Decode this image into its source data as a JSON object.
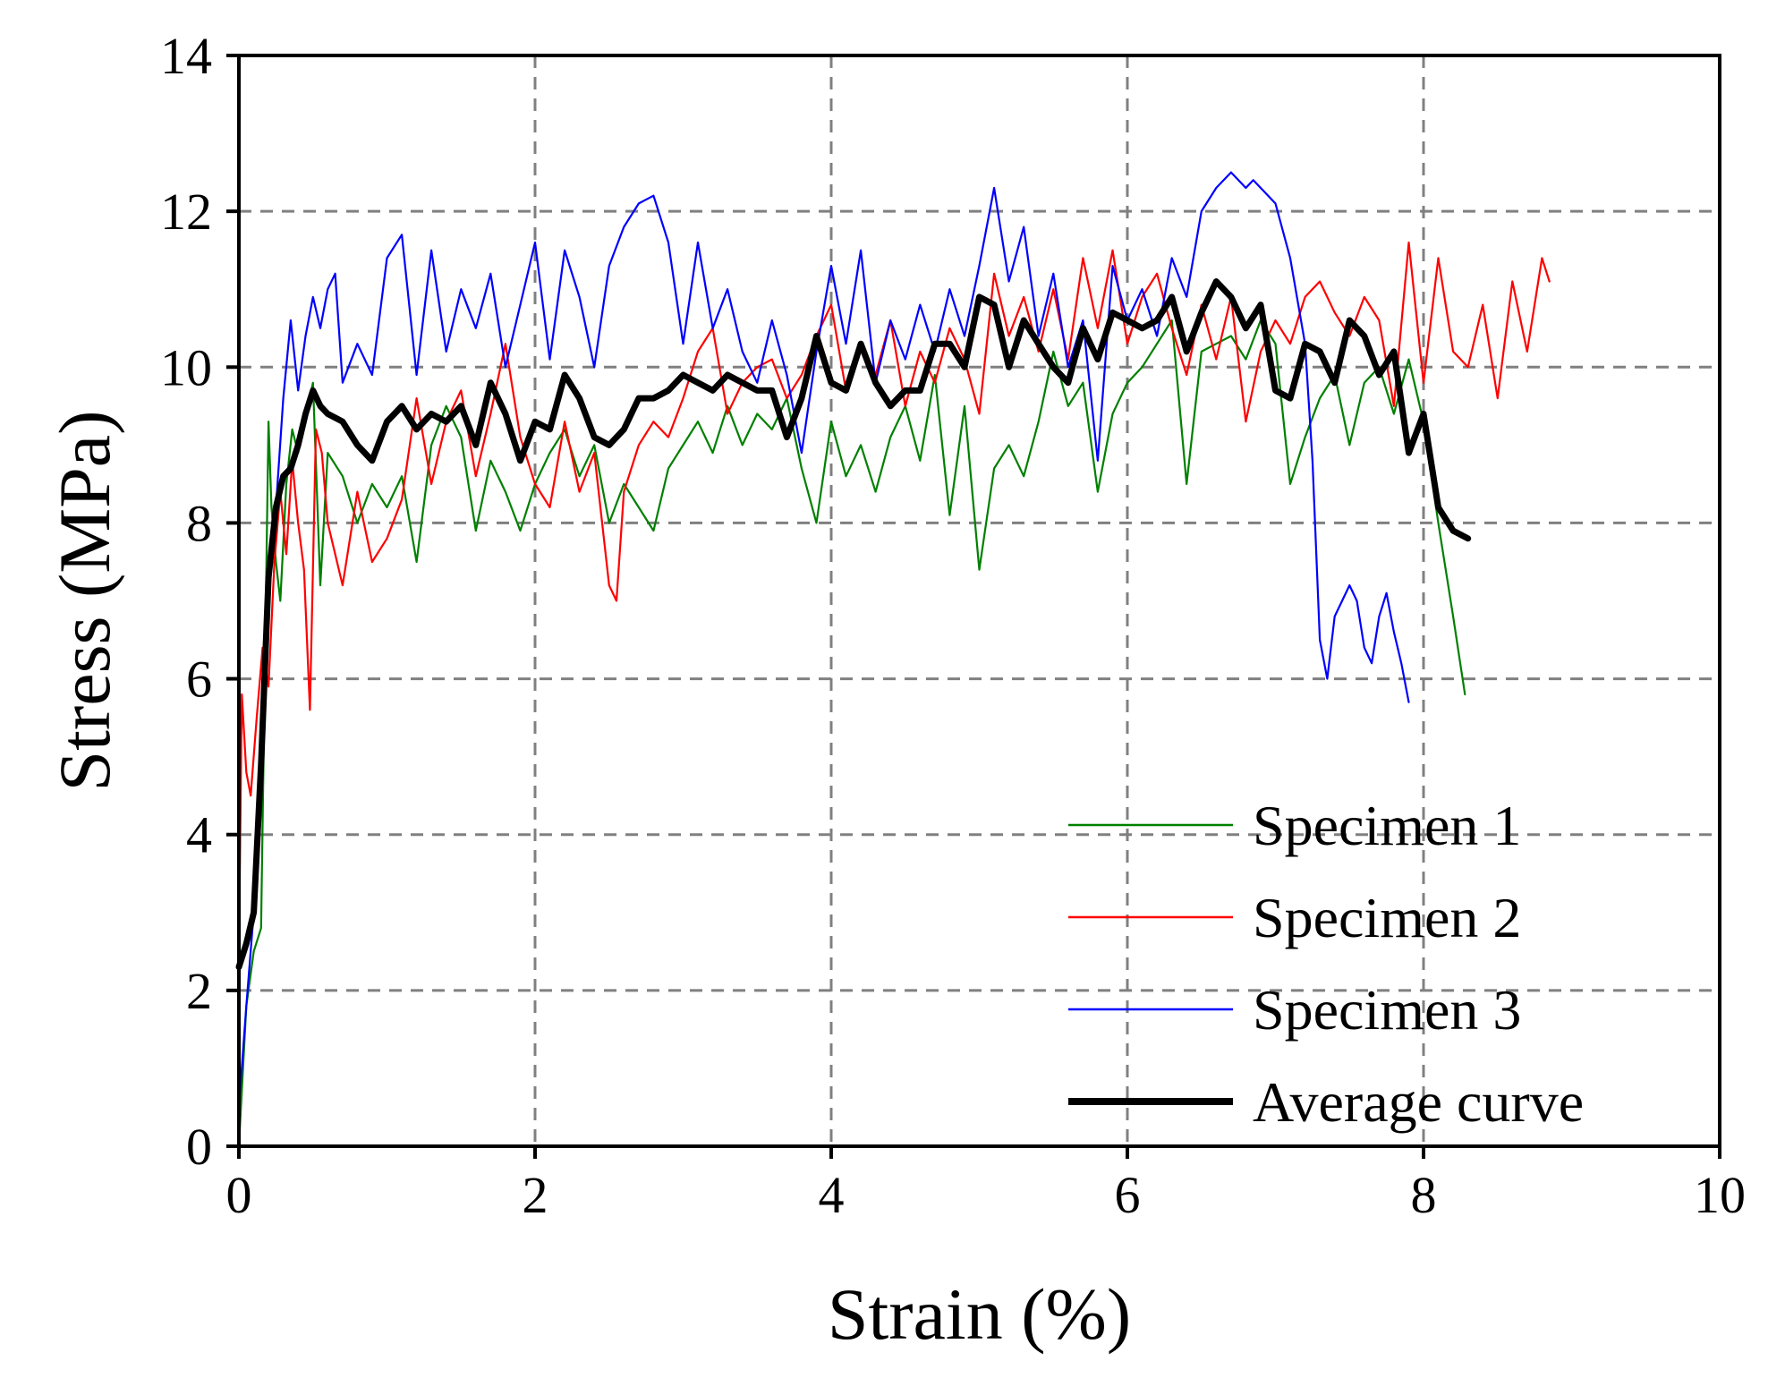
{
  "chart_data": {
    "type": "line",
    "title": "",
    "xlabel": "Strain (%)",
    "ylabel": "Stress (MPa)",
    "xlim": [
      0,
      10
    ],
    "ylim": [
      0,
      14
    ],
    "xticks": [
      0,
      2,
      4,
      6,
      8,
      10
    ],
    "yticks": [
      0,
      2,
      4,
      6,
      8,
      10,
      12,
      14
    ],
    "xtick_labels": [
      "0",
      "2",
      "4",
      "6",
      "8",
      "10"
    ],
    "ytick_labels": [
      "0",
      "2",
      "4",
      "6",
      "8",
      "10",
      "12",
      "14"
    ],
    "grid": true,
    "legend_position": "bottom-right",
    "series": [
      {
        "name": "Specimen 1",
        "color": "#008000",
        "x": [
          0,
          0.05,
          0.1,
          0.15,
          0.2,
          0.22,
          0.25,
          0.28,
          0.32,
          0.36,
          0.4,
          0.45,
          0.5,
          0.55,
          0.6,
          0.7,
          0.8,
          0.9,
          1.0,
          1.1,
          1.2,
          1.3,
          1.4,
          1.5,
          1.6,
          1.7,
          1.8,
          1.9,
          2.0,
          2.1,
          2.2,
          2.3,
          2.4,
          2.5,
          2.6,
          2.7,
          2.8,
          2.9,
          3.0,
          3.1,
          3.2,
          3.3,
          3.4,
          3.5,
          3.6,
          3.7,
          3.8,
          3.9,
          4.0,
          4.1,
          4.2,
          4.3,
          4.4,
          4.5,
          4.6,
          4.7,
          4.8,
          4.9,
          5.0,
          5.1,
          5.2,
          5.3,
          5.4,
          5.5,
          5.6,
          5.7,
          5.8,
          5.9,
          6.0,
          6.1,
          6.2,
          6.3,
          6.4,
          6.5,
          6.6,
          6.7,
          6.8,
          6.9,
          7.0,
          7.1,
          7.2,
          7.3,
          7.4,
          7.5,
          7.6,
          7.7,
          7.8,
          7.9,
          8.0,
          8.1,
          8.2,
          8.28
        ],
        "y": [
          0,
          1.8,
          2.5,
          2.8,
          9.3,
          8.2,
          7.5,
          7.0,
          8.5,
          9.2,
          8.9,
          9.4,
          9.8,
          7.2,
          8.9,
          8.6,
          8.0,
          8.5,
          8.2,
          8.6,
          7.5,
          9.0,
          9.5,
          9.1,
          7.9,
          8.8,
          8.4,
          7.9,
          8.5,
          8.9,
          9.2,
          8.6,
          9.0,
          8.0,
          8.5,
          8.2,
          7.9,
          8.7,
          9.0,
          9.3,
          8.9,
          9.5,
          9.0,
          9.4,
          9.2,
          9.6,
          8.7,
          8.0,
          9.3,
          8.6,
          9.0,
          8.4,
          9.1,
          9.5,
          8.8,
          9.9,
          8.1,
          9.5,
          7.4,
          8.7,
          9.0,
          8.6,
          9.3,
          10.2,
          9.5,
          9.8,
          8.4,
          9.4,
          9.8,
          10.0,
          10.3,
          10.6,
          8.5,
          10.2,
          10.3,
          10.4,
          10.1,
          10.6,
          10.3,
          8.5,
          9.1,
          9.6,
          9.9,
          9.0,
          9.8,
          10.0,
          9.4,
          10.1,
          9.3,
          8.0,
          6.8,
          5.8
        ]
      },
      {
        "name": "Specimen 2",
        "color": "#ff0000",
        "x": [
          0,
          0.02,
          0.05,
          0.08,
          0.12,
          0.16,
          0.2,
          0.24,
          0.28,
          0.32,
          0.36,
          0.4,
          0.44,
          0.48,
          0.52,
          0.56,
          0.6,
          0.7,
          0.8,
          0.9,
          1.0,
          1.1,
          1.2,
          1.3,
          1.4,
          1.5,
          1.6,
          1.7,
          1.8,
          1.9,
          2.0,
          2.1,
          2.2,
          2.3,
          2.4,
          2.5,
          2.55,
          2.6,
          2.7,
          2.8,
          2.9,
          3.0,
          3.1,
          3.2,
          3.3,
          3.4,
          3.5,
          3.6,
          3.7,
          3.8,
          3.9,
          4.0,
          4.1,
          4.2,
          4.3,
          4.4,
          4.5,
          4.6,
          4.7,
          4.8,
          4.9,
          5.0,
          5.1,
          5.2,
          5.3,
          5.4,
          5.5,
          5.6,
          5.7,
          5.8,
          5.9,
          6.0,
          6.1,
          6.2,
          6.3,
          6.4,
          6.5,
          6.6,
          6.7,
          6.8,
          6.9,
          7.0,
          7.1,
          7.2,
          7.3,
          7.4,
          7.5,
          7.6,
          7.7,
          7.8,
          7.9,
          8.0,
          8.1,
          8.2,
          8.3,
          8.4,
          8.5,
          8.6,
          8.7,
          8.8,
          8.85
        ],
        "y": [
          2.5,
          5.8,
          4.8,
          4.5,
          5.5,
          6.4,
          5.9,
          7.5,
          8.4,
          7.6,
          8.8,
          8.0,
          7.4,
          5.6,
          9.2,
          8.9,
          8.0,
          7.2,
          8.4,
          7.5,
          7.8,
          8.3,
          9.6,
          8.5,
          9.3,
          9.7,
          8.6,
          9.4,
          10.3,
          9.1,
          8.5,
          8.2,
          9.3,
          8.4,
          8.9,
          7.2,
          7.0,
          8.4,
          9.0,
          9.3,
          9.1,
          9.6,
          10.2,
          10.5,
          9.4,
          9.8,
          10.0,
          10.1,
          9.6,
          9.9,
          10.4,
          10.8,
          9.7,
          10.3,
          9.9,
          10.6,
          9.5,
          10.2,
          9.8,
          10.5,
          10.1,
          9.4,
          11.2,
          10.4,
          10.9,
          10.2,
          11.0,
          10.1,
          11.4,
          10.5,
          11.5,
          10.3,
          10.9,
          11.2,
          10.5,
          9.9,
          10.8,
          10.1,
          10.9,
          9.3,
          10.2,
          10.6,
          10.3,
          10.9,
          11.1,
          10.7,
          10.4,
          10.9,
          10.6,
          9.5,
          11.6,
          9.8,
          11.4,
          10.2,
          10.0,
          10.8,
          9.6,
          11.1,
          10.2,
          11.4,
          11.1
        ]
      },
      {
        "name": "Specimen 3",
        "color": "#0000ff",
        "x": [
          0,
          0.05,
          0.1,
          0.15,
          0.2,
          0.25,
          0.3,
          0.35,
          0.4,
          0.45,
          0.5,
          0.55,
          0.6,
          0.65,
          0.7,
          0.8,
          0.9,
          1.0,
          1.1,
          1.2,
          1.3,
          1.4,
          1.5,
          1.6,
          1.7,
          1.8,
          1.9,
          2.0,
          2.1,
          2.2,
          2.3,
          2.4,
          2.5,
          2.6,
          2.7,
          2.8,
          2.9,
          3.0,
          3.1,
          3.2,
          3.3,
          3.4,
          3.5,
          3.6,
          3.7,
          3.8,
          3.9,
          4.0,
          4.1,
          4.2,
          4.3,
          4.4,
          4.5,
          4.6,
          4.7,
          4.8,
          4.9,
          5.0,
          5.1,
          5.2,
          5.3,
          5.4,
          5.5,
          5.6,
          5.7,
          5.8,
          5.9,
          6.0,
          6.1,
          6.2,
          6.3,
          6.4,
          6.5,
          6.6,
          6.7,
          6.8,
          6.85,
          6.9,
          7.0,
          7.1,
          7.2,
          7.25,
          7.3,
          7.35,
          7.4,
          7.45,
          7.5,
          7.55,
          7.6,
          7.65,
          7.7,
          7.75,
          7.8,
          7.85,
          7.9
        ],
        "y": [
          0.5,
          1.8,
          3.0,
          4.5,
          7.2,
          8.2,
          9.6,
          10.6,
          9.7,
          10.4,
          10.9,
          10.5,
          11.0,
          11.2,
          9.8,
          10.3,
          9.9,
          11.4,
          11.7,
          9.9,
          11.5,
          10.2,
          11.0,
          10.5,
          11.2,
          10.0,
          10.8,
          11.6,
          10.1,
          11.5,
          10.9,
          10.0,
          11.3,
          11.8,
          12.1,
          12.2,
          11.6,
          10.3,
          11.6,
          10.5,
          11.0,
          10.2,
          9.8,
          10.6,
          9.9,
          8.9,
          10.2,
          11.3,
          10.3,
          11.5,
          9.8,
          10.6,
          10.1,
          10.8,
          10.2,
          11.0,
          10.4,
          11.3,
          12.3,
          11.1,
          11.8,
          10.4,
          11.2,
          10.0,
          10.6,
          8.8,
          11.3,
          10.6,
          11.0,
          10.4,
          11.4,
          10.9,
          12.0,
          12.3,
          12.5,
          12.3,
          12.4,
          12.3,
          12.1,
          11.4,
          10.3,
          8.8,
          6.5,
          6.0,
          6.8,
          7.0,
          7.2,
          7.0,
          6.4,
          6.2,
          6.8,
          7.1,
          6.6,
          6.2,
          5.7
        ]
      },
      {
        "name": "Average curve",
        "color": "#000000",
        "x": [
          0,
          0.05,
          0.1,
          0.15,
          0.2,
          0.25,
          0.3,
          0.35,
          0.4,
          0.45,
          0.5,
          0.55,
          0.6,
          0.7,
          0.8,
          0.9,
          1.0,
          1.1,
          1.2,
          1.3,
          1.4,
          1.5,
          1.6,
          1.7,
          1.8,
          1.9,
          2.0,
          2.1,
          2.2,
          2.3,
          2.4,
          2.5,
          2.6,
          2.7,
          2.8,
          2.9,
          3.0,
          3.1,
          3.2,
          3.3,
          3.4,
          3.5,
          3.6,
          3.7,
          3.8,
          3.9,
          4.0,
          4.1,
          4.2,
          4.3,
          4.4,
          4.5,
          4.6,
          4.7,
          4.8,
          4.9,
          5.0,
          5.1,
          5.2,
          5.3,
          5.4,
          5.5,
          5.6,
          5.7,
          5.8,
          5.9,
          6.0,
          6.1,
          6.2,
          6.3,
          6.4,
          6.5,
          6.6,
          6.7,
          6.8,
          6.9,
          7.0,
          7.1,
          7.2,
          7.3,
          7.4,
          7.5,
          7.6,
          7.7,
          7.8,
          7.9,
          8.0,
          8.1,
          8.2,
          8.3
        ],
        "y": [
          2.3,
          2.6,
          3.0,
          4.9,
          7.3,
          8.2,
          8.6,
          8.7,
          9.0,
          9.4,
          9.7,
          9.5,
          9.4,
          9.3,
          9.0,
          8.8,
          9.3,
          9.5,
          9.2,
          9.4,
          9.3,
          9.5,
          9.0,
          9.8,
          9.4,
          8.8,
          9.3,
          9.2,
          9.9,
          9.6,
          9.1,
          9.0,
          9.2,
          9.6,
          9.6,
          9.7,
          9.9,
          9.8,
          9.7,
          9.9,
          9.8,
          9.7,
          9.7,
          9.1,
          9.6,
          10.4,
          9.8,
          9.7,
          10.3,
          9.8,
          9.5,
          9.7,
          9.7,
          10.3,
          10.3,
          10.0,
          10.9,
          10.8,
          10.0,
          10.6,
          10.3,
          10.0,
          9.8,
          10.5,
          10.1,
          10.7,
          10.6,
          10.5,
          10.6,
          10.9,
          10.2,
          10.7,
          11.1,
          10.9,
          10.5,
          10.8,
          9.7,
          9.6,
          10.3,
          10.2,
          9.8,
          10.6,
          10.4,
          9.9,
          10.2,
          8.9,
          9.4,
          8.2,
          7.9,
          7.8
        ]
      }
    ]
  }
}
